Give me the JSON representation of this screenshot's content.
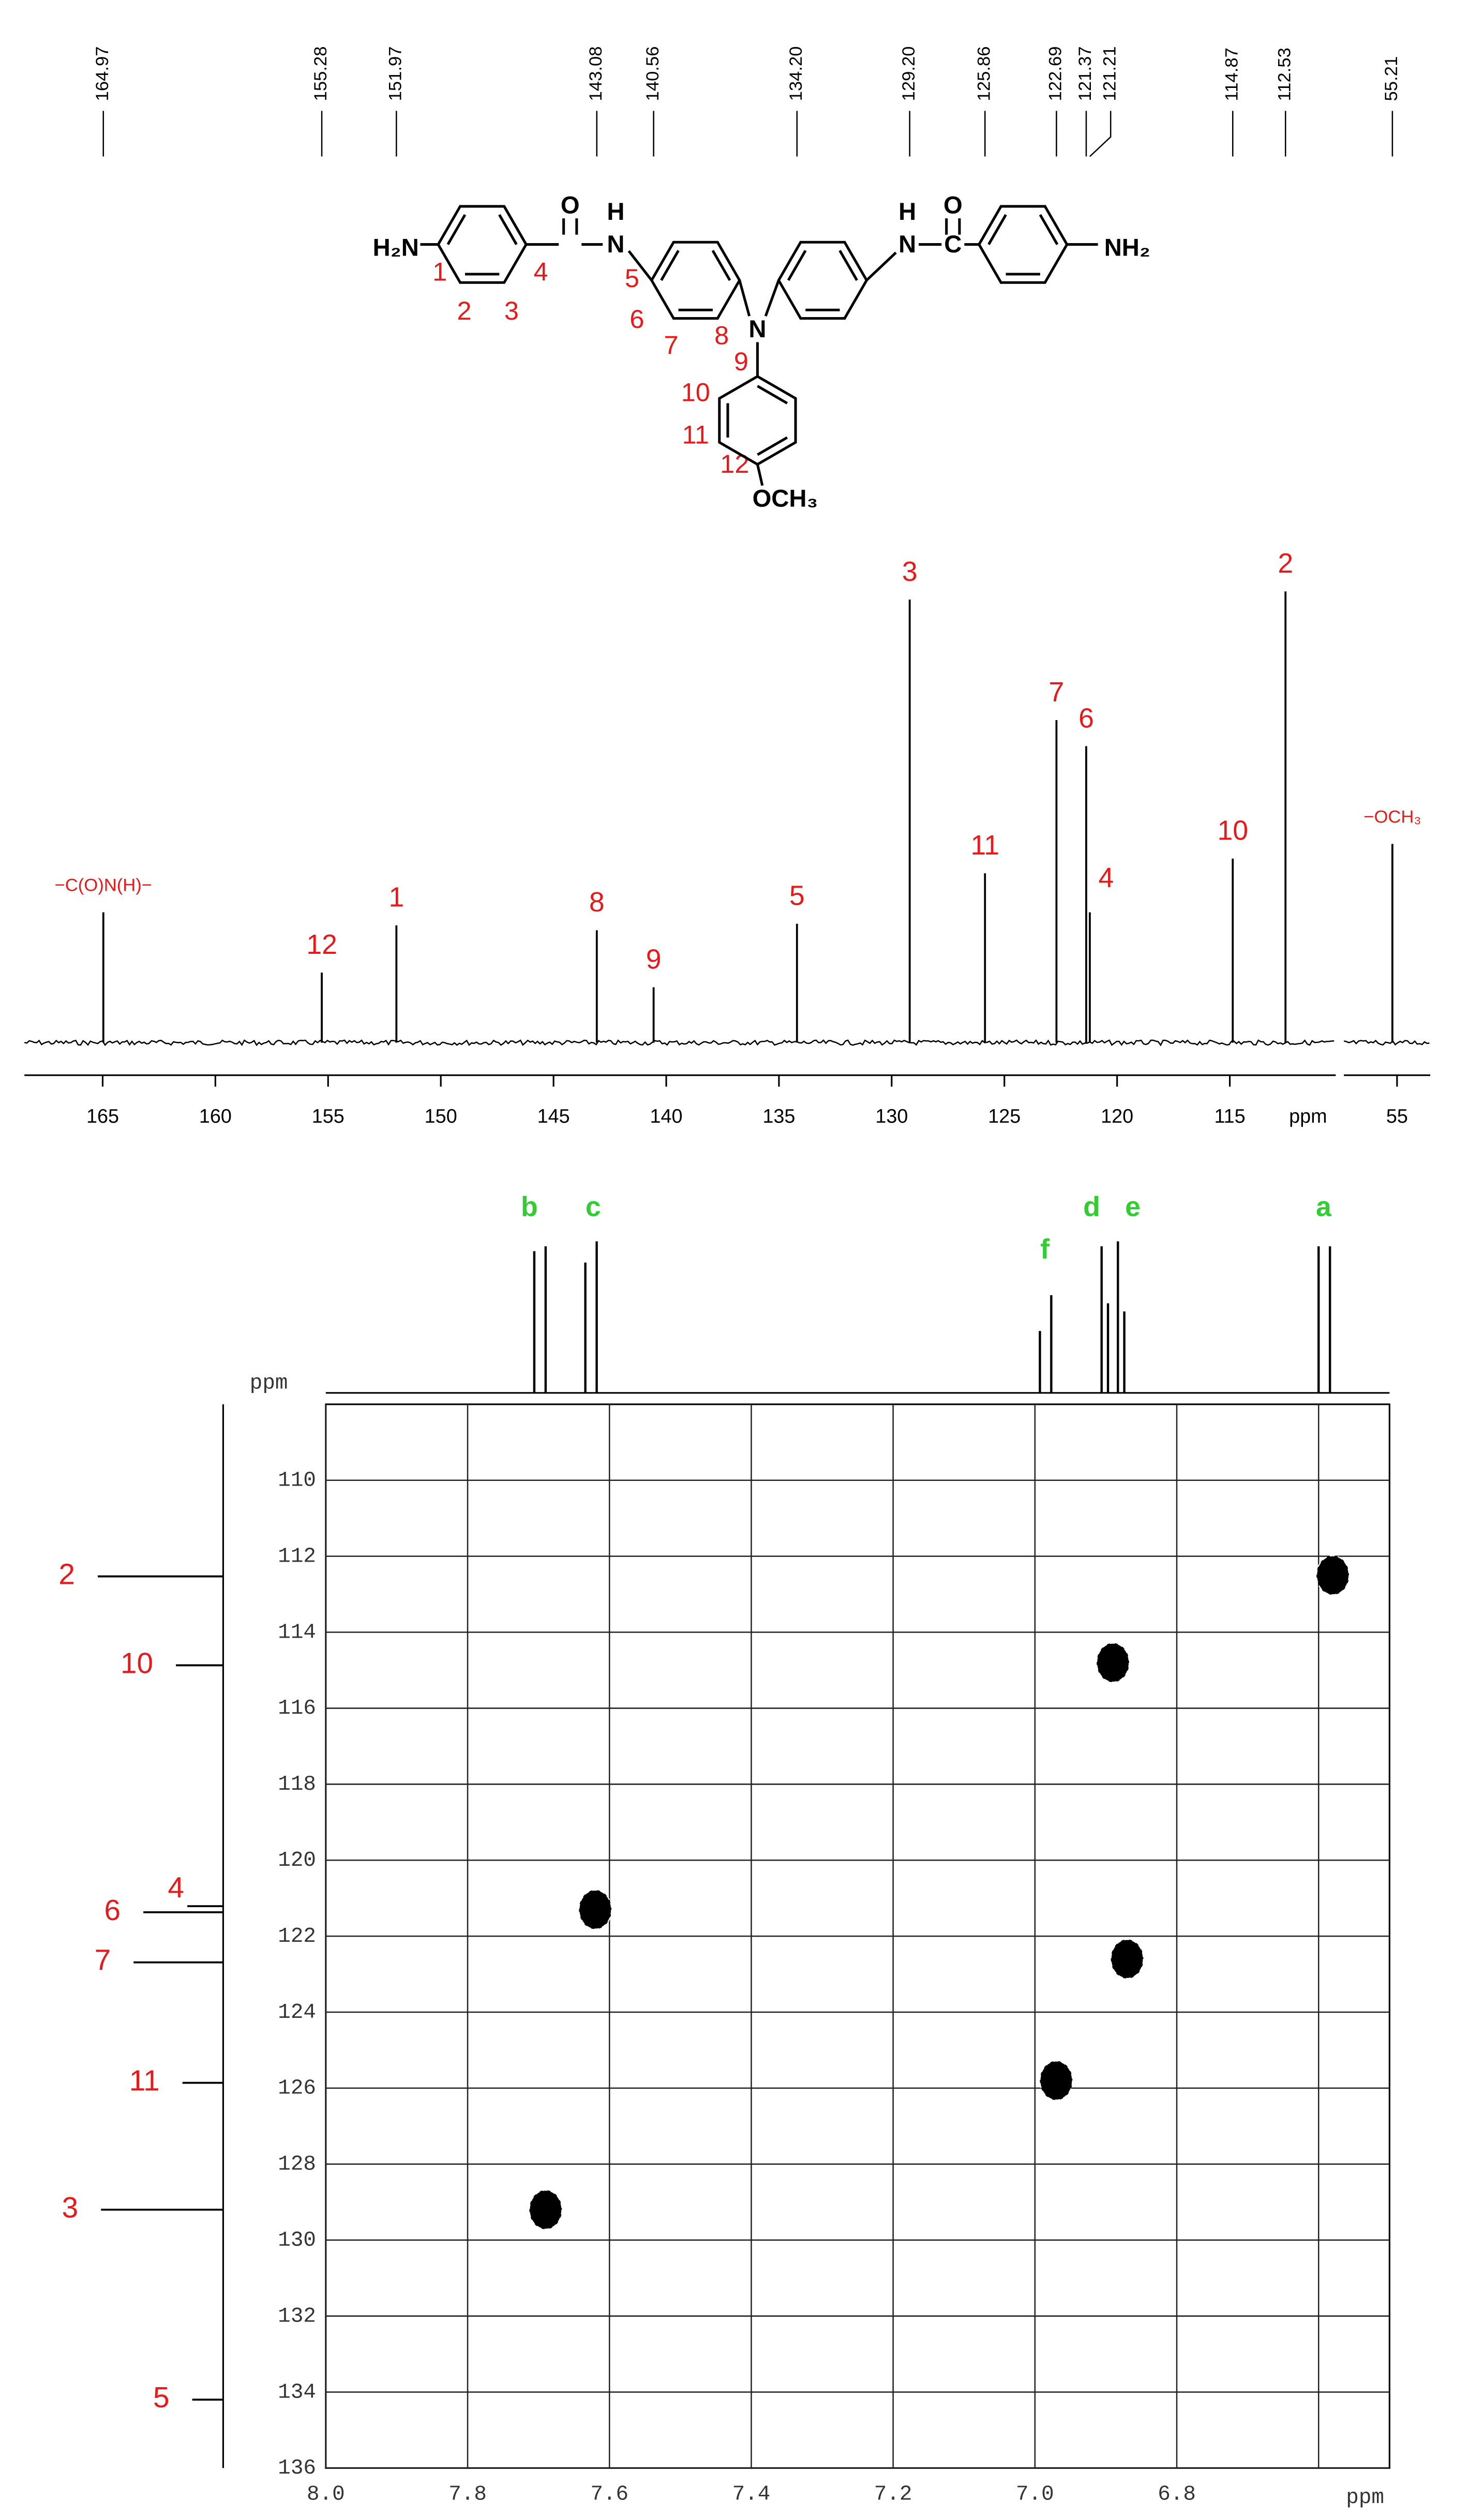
{
  "structure": {
    "groups": [
      "H₂N",
      "O",
      "H",
      "N",
      "N",
      "H",
      "N",
      "C",
      "O",
      "NH₂",
      "OCH₃"
    ],
    "numbers": [
      "1",
      "2",
      "3",
      "4",
      "5",
      "6",
      "7",
      "8",
      "9",
      "10",
      "11",
      "12"
    ]
  },
  "chart_data": [
    {
      "type": "spectrum",
      "xlabel": "ppm",
      "x": [
        164.97,
        155.28,
        151.97,
        143.08,
        140.56,
        134.2,
        129.2,
        125.86,
        122.69,
        121.37,
        121.21,
        114.87,
        112.53,
        55.21
      ],
      "x_labels": [
        "164.97",
        "155.28",
        "151.97",
        "143.08",
        "140.56",
        "134.20",
        "129.20",
        "125.86",
        "122.69",
        "121.37",
        "121.21",
        "114.87",
        "112.53",
        "55.21"
      ],
      "values": [
        80,
        43,
        72,
        69,
        34,
        73,
        272,
        104,
        198,
        182,
        80,
        113,
        277,
        122
      ],
      "assignments": [
        "−C(O)N(H)−",
        "12",
        "1",
        "8",
        "9",
        "5",
        "3",
        "11",
        "7",
        "6",
        "4",
        "10",
        "2",
        "−OCH₃"
      ],
      "color": "#000000",
      "label_color": "#e8191a",
      "ylim": [
        0,
        300
      ],
      "axis_segments": [
        {
          "xlim": [
            168.47,
            110.3
          ],
          "xticks": [
            165,
            160,
            155,
            150,
            145,
            140,
            135,
            130,
            125,
            120,
            115
          ]
        },
        {
          "xlim": [
            57.4,
            53.5
          ],
          "xticks": [
            55
          ]
        }
      ]
    },
    {
      "type": "hsqc",
      "xlabel": "ppm",
      "ylabel": "ppm",
      "xlim": [
        8.0,
        6.5
      ],
      "ylim": [
        108,
        136
      ],
      "xticks": [
        {
          "value": 8,
          "label": "8.0"
        },
        7.8,
        7.6,
        7.4,
        7.2,
        {
          "value": 7,
          "label": "7.0"
        },
        6.8,
        {
          "value": 6.6,
          "label": null
        }
      ],
      "yticks": [
        110,
        112,
        114,
        116,
        118,
        120,
        122,
        124,
        126,
        128,
        130,
        132,
        134,
        136
      ],
      "grid": true,
      "color": "#000000",
      "x": [
        6.58,
        6.89,
        7.62,
        6.87,
        6.97,
        7.69
      ],
      "y": [
        112.5,
        114.8,
        121.3,
        122.6,
        125.8,
        129.2
      ],
      "proton_projection": {
        "x": [
          7.706,
          7.69,
          7.634,
          7.618,
          6.993,
          6.977,
          6.906,
          6.897,
          6.883,
          6.874,
          6.6,
          6.584
        ],
        "values": [
          87,
          90,
          80,
          93,
          38,
          60,
          90,
          55,
          93,
          50,
          90,
          90
        ],
        "peak_labels": [
          "b",
          "c",
          "f",
          "d",
          "e",
          "a"
        ],
        "label_x": [
          7.713,
          7.623,
          6.986,
          6.92,
          6.862,
          6.593
        ],
        "label_color": "#33cc33"
      },
      "carbon_projection": {
        "y": [
          112.53,
          114.87,
          121.21,
          121.37,
          122.69,
          125.86,
          129.2,
          134.2
        ],
        "values": [
          77,
          29,
          22,
          49,
          55,
          25,
          75,
          19
        ],
        "labels": [
          "2",
          "10",
          "4",
          "6",
          "7",
          "11",
          "3",
          "5"
        ],
        "label_color": "#e8191a"
      }
    }
  ]
}
